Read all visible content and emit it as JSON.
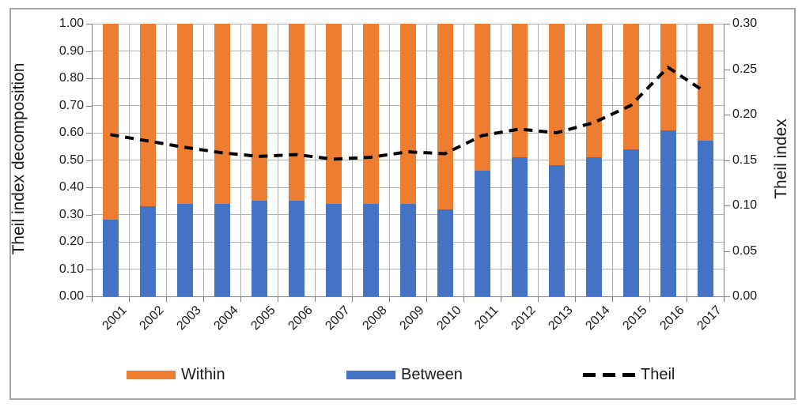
{
  "chart_data": {
    "type": "bar",
    "variant": "stacked-to-1.00-with-dashed-line-overlay-dual-axis",
    "categories": [
      "2001",
      "2002",
      "2003",
      "2004",
      "2005",
      "2006",
      "2007",
      "2008",
      "2009",
      "2010",
      "2011",
      "2012",
      "2013",
      "2014",
      "2015",
      "2016",
      "2017"
    ],
    "series": [
      {
        "name": "Within",
        "type": "bar",
        "axis": "left",
        "color": "#ED7D31",
        "values": [
          0.72,
          0.67,
          0.66,
          0.66,
          0.65,
          0.65,
          0.66,
          0.66,
          0.66,
          0.68,
          0.54,
          0.49,
          0.52,
          0.49,
          0.46,
          0.39,
          0.43
        ]
      },
      {
        "name": "Between",
        "type": "bar",
        "axis": "left",
        "color": "#4472C4",
        "values": [
          0.28,
          0.33,
          0.34,
          0.34,
          0.35,
          0.35,
          0.34,
          0.34,
          0.34,
          0.32,
          0.46,
          0.51,
          0.48,
          0.51,
          0.54,
          0.61,
          0.57
        ]
      },
      {
        "name": "Theil",
        "type": "line",
        "axis": "right",
        "color": "#000000",
        "dashed": true,
        "values": [
          0.178,
          0.171,
          0.164,
          0.158,
          0.154,
          0.156,
          0.151,
          0.153,
          0.159,
          0.157,
          0.177,
          0.184,
          0.18,
          0.191,
          0.21,
          0.252,
          0.225
        ]
      }
    ],
    "left_axis": {
      "title": "Theil index decomposition",
      "min": 0.0,
      "max": 1.0,
      "step": 0.1,
      "tick_labels": [
        "0.00",
        "0.10",
        "0.20",
        "0.30",
        "0.40",
        "0.50",
        "0.60",
        "0.70",
        "0.80",
        "0.90",
        "1.00"
      ]
    },
    "right_axis": {
      "title": "Theil index",
      "min": 0.0,
      "max": 0.3,
      "step": 0.05,
      "tick_labels": [
        "0.00",
        "0.05",
        "0.10",
        "0.15",
        "0.20",
        "0.25",
        "0.30"
      ]
    },
    "legend": {
      "position": "bottom",
      "entries": [
        {
          "label": "Within",
          "swatch": "rect",
          "color": "#ED7D31"
        },
        {
          "label": "Between",
          "swatch": "rect",
          "color": "#4472C4"
        },
        {
          "label": "Theil",
          "swatch": "dash",
          "color": "#000000"
        }
      ]
    },
    "grid": {
      "horizontal": true,
      "vertical": true,
      "color": "#B0B0B0"
    },
    "colors": {
      "axis_line": "#7F7F7F",
      "frame_border": "#A6A6A6",
      "text": "#1a1a1a",
      "background": "#FFFFFF"
    }
  }
}
